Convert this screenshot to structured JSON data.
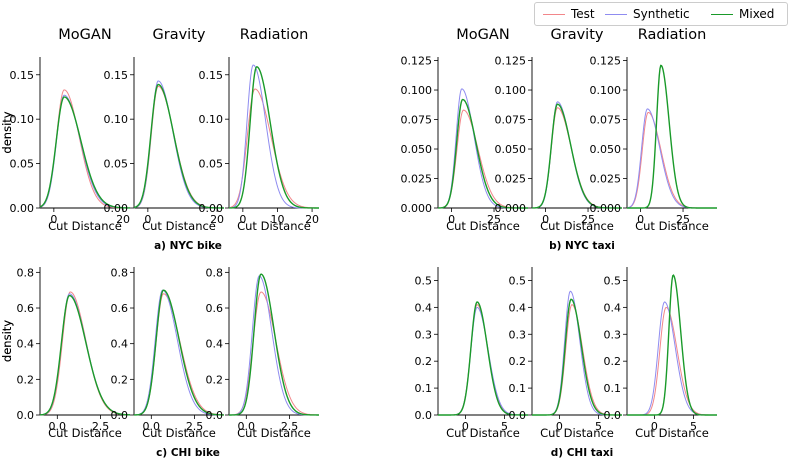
{
  "colors": {
    "Test": "#f2868a",
    "Synthetic": "#8f8cf0",
    "Mixed": "#1a9a2a"
  },
  "legend": {
    "placement": "top-right",
    "items": [
      {
        "label": "Test",
        "color": "#f2868a"
      },
      {
        "label": "Synthetic",
        "color": "#8f8cf0"
      },
      {
        "label": "Mixed",
        "color": "#1a9a2a"
      }
    ]
  },
  "groups": [
    {
      "caption": "a) NYC bike"
    },
    {
      "caption": "b) NYC taxi"
    },
    {
      "caption": "c) CHI bike"
    },
    {
      "caption": "d) CHI taxi"
    }
  ],
  "chart_data": [
    {
      "type": "line",
      "title": "MoGAN",
      "xlabel": "Cut Distance",
      "ylabel": "density",
      "xlim": [
        -4,
        22
      ],
      "ylim": [
        0,
        0.17
      ],
      "xticks": [
        "0",
        "20"
      ],
      "yticks": [
        "0.00",
        "0.05",
        "0.10",
        "0.15"
      ],
      "series": [
        {
          "name": "Test",
          "mode": 3,
          "peak": 0.133,
          "sd_left": 2.2,
          "sd_right": 4.3
        },
        {
          "name": "Synthetic",
          "mode": 3,
          "peak": 0.127,
          "sd_left": 2.2,
          "sd_right": 4.6
        },
        {
          "name": "Mixed",
          "mode": 3,
          "peak": 0.125,
          "sd_left": 2.3,
          "sd_right": 4.8
        }
      ]
    },
    {
      "type": "line",
      "title": "Gravity",
      "xlabel": "Cut Distance",
      "ylabel": "",
      "xlim": [
        -4,
        22
      ],
      "ylim": [
        0,
        0.17
      ],
      "xticks": [
        "0",
        "20"
      ],
      "yticks": [
        "0.00",
        "0.05",
        "0.10",
        "0.15"
      ],
      "series": [
        {
          "name": "Test",
          "mode": 3,
          "peak": 0.137,
          "sd_left": 2.0,
          "sd_right": 4.5
        },
        {
          "name": "Synthetic",
          "mode": 3,
          "peak": 0.143,
          "sd_left": 2.0,
          "sd_right": 4.2
        },
        {
          "name": "Mixed",
          "mode": 3,
          "peak": 0.139,
          "sd_left": 2.1,
          "sd_right": 4.4
        }
      ]
    },
    {
      "type": "line",
      "title": "Radiation",
      "xlabel": "Cut Distance",
      "ylabel": "",
      "xlim": [
        -4,
        22
      ],
      "ylim": [
        0,
        0.17
      ],
      "xticks": [
        "0",
        "10",
        "20"
      ],
      "yticks": [
        "0.00",
        "0.05",
        "0.10",
        "0.15"
      ],
      "series": [
        {
          "name": "Test",
          "mode": 3.5,
          "peak": 0.134,
          "sd_left": 2.2,
          "sd_right": 4.6
        },
        {
          "name": "Synthetic",
          "mode": 3,
          "peak": 0.161,
          "sd_left": 1.8,
          "sd_right": 3.6
        },
        {
          "name": "Mixed",
          "mode": 4,
          "peak": 0.159,
          "sd_left": 1.9,
          "sd_right": 3.9
        }
      ]
    },
    {
      "type": "line",
      "title": "MoGAN",
      "xlabel": "Cut Distance",
      "ylabel": "density",
      "xlim": [
        -8,
        45
      ],
      "ylim": [
        0,
        0.128
      ],
      "xticks": [
        "0",
        "25"
      ],
      "yticks": [
        "0.000",
        "0.025",
        "0.050",
        "0.075",
        "0.100",
        "0.125"
      ],
      "series": [
        {
          "name": "Test",
          "mode": 7,
          "peak": 0.083,
          "sd_left": 3.8,
          "sd_right": 8.5
        },
        {
          "name": "Synthetic",
          "mode": 6,
          "peak": 0.101,
          "sd_left": 3.3,
          "sd_right": 7.2
        },
        {
          "name": "Mixed",
          "mode": 6.5,
          "peak": 0.092,
          "sd_left": 3.5,
          "sd_right": 7.8
        }
      ]
    },
    {
      "type": "line",
      "title": "Gravity",
      "xlabel": "Cut Distance",
      "ylabel": "",
      "xlim": [
        -8,
        45
      ],
      "ylim": [
        0,
        0.128
      ],
      "xticks": [
        "0",
        "25"
      ],
      "yticks": [
        "0.000",
        "0.025",
        "0.050",
        "0.075",
        "0.100",
        "0.125"
      ],
      "series": [
        {
          "name": "Test",
          "mode": 7,
          "peak": 0.085,
          "sd_left": 3.6,
          "sd_right": 8.0
        },
        {
          "name": "Synthetic",
          "mode": 7,
          "peak": 0.09,
          "sd_left": 3.5,
          "sd_right": 7.6
        },
        {
          "name": "Mixed",
          "mode": 7,
          "peak": 0.088,
          "sd_left": 3.6,
          "sd_right": 7.8
        }
      ]
    },
    {
      "type": "line",
      "title": "Radiation",
      "xlabel": "Cut Distance",
      "ylabel": "",
      "xlim": [
        -8,
        45
      ],
      "ylim": [
        0,
        0.128
      ],
      "xticks": [
        "0",
        "25"
      ],
      "yticks": [
        "0.000",
        "0.025",
        "0.050",
        "0.075",
        "0.100",
        "0.125"
      ],
      "series": [
        {
          "name": "Test",
          "mode": 4.5,
          "peak": 0.081,
          "sd_left": 3.5,
          "sd_right": 7.5
        },
        {
          "name": "Synthetic",
          "mode": 4,
          "peak": 0.084,
          "sd_left": 3.4,
          "sd_right": 7.3
        },
        {
          "name": "Mixed",
          "mode": 12,
          "peak": 0.121,
          "sd_left": 2.6,
          "sd_right": 4.8
        }
      ]
    },
    {
      "type": "line",
      "title": "",
      "xlabel": "Cut Distance",
      "ylabel": "density",
      "xlim": [
        -1,
        4.2
      ],
      "ylim": [
        0,
        0.83
      ],
      "xticks": [
        "0.0",
        "2.5"
      ],
      "yticks": [
        "0.0",
        "0.2",
        "0.4",
        "0.6",
        "0.8"
      ],
      "series": [
        {
          "name": "Test",
          "mode": 0.75,
          "peak": 0.69,
          "sd_left": 0.45,
          "sd_right": 0.9
        },
        {
          "name": "Synthetic",
          "mode": 0.7,
          "peak": 0.68,
          "sd_left": 0.45,
          "sd_right": 0.95
        },
        {
          "name": "Mixed",
          "mode": 0.7,
          "peak": 0.67,
          "sd_left": 0.46,
          "sd_right": 0.95
        }
      ]
    },
    {
      "type": "line",
      "title": "",
      "xlabel": "Cut Distance",
      "ylabel": "",
      "xlim": [
        -1,
        4.2
      ],
      "ylim": [
        0,
        0.83
      ],
      "xticks": [
        "0.0",
        "2.5"
      ],
      "yticks": [
        "0.0",
        "0.2",
        "0.4",
        "0.6",
        "0.8"
      ],
      "series": [
        {
          "name": "Test",
          "mode": 0.7,
          "peak": 0.68,
          "sd_left": 0.42,
          "sd_right": 0.95
        },
        {
          "name": "Synthetic",
          "mode": 0.65,
          "peak": 0.7,
          "sd_left": 0.42,
          "sd_right": 0.85
        },
        {
          "name": "Mixed",
          "mode": 0.7,
          "peak": 0.7,
          "sd_left": 0.42,
          "sd_right": 0.9
        }
      ]
    },
    {
      "type": "line",
      "title": "",
      "xlabel": "Cut Distance",
      "ylabel": "",
      "xlim": [
        -1,
        4.2
      ],
      "ylim": [
        0,
        0.83
      ],
      "xticks": [
        "0.0",
        "2.5"
      ],
      "yticks": [
        "0.0",
        "0.2",
        "0.4",
        "0.6",
        "0.8"
      ],
      "series": [
        {
          "name": "Test",
          "mode": 0.85,
          "peak": 0.69,
          "sd_left": 0.45,
          "sd_right": 0.85
        },
        {
          "name": "Synthetic",
          "mode": 0.75,
          "peak": 0.78,
          "sd_left": 0.4,
          "sd_right": 0.72
        },
        {
          "name": "Mixed",
          "mode": 0.85,
          "peak": 0.79,
          "sd_left": 0.4,
          "sd_right": 0.75
        }
      ]
    },
    {
      "type": "line",
      "title": "",
      "xlabel": "Cut Distance",
      "ylabel": "density",
      "xlim": [
        -3.5,
        8
      ],
      "ylim": [
        0,
        0.55
      ],
      "xticks": [
        "0",
        "5"
      ],
      "yticks": [
        "0.0",
        "0.1",
        "0.2",
        "0.3",
        "0.4",
        "0.5"
      ],
      "series": [
        {
          "name": "Test",
          "mode": 1.5,
          "peak": 0.41,
          "sd_left": 0.8,
          "sd_right": 1.35
        },
        {
          "name": "Synthetic",
          "mode": 1.5,
          "peak": 0.4,
          "sd_left": 0.8,
          "sd_right": 1.4
        },
        {
          "name": "Mixed",
          "mode": 1.5,
          "peak": 0.42,
          "sd_left": 0.78,
          "sd_right": 1.3
        }
      ]
    },
    {
      "type": "line",
      "title": "",
      "xlabel": "Cut Distance",
      "ylabel": "",
      "xlim": [
        -3.5,
        8
      ],
      "ylim": [
        0,
        0.55
      ],
      "xticks": [
        "0",
        "5"
      ],
      "yticks": [
        "0.0",
        "0.1",
        "0.2",
        "0.3",
        "0.4",
        "0.5"
      ],
      "series": [
        {
          "name": "Test",
          "mode": 1.6,
          "peak": 0.41,
          "sd_left": 0.78,
          "sd_right": 1.35
        },
        {
          "name": "Synthetic",
          "mode": 1.4,
          "peak": 0.46,
          "sd_left": 0.72,
          "sd_right": 1.2
        },
        {
          "name": "Mixed",
          "mode": 1.5,
          "peak": 0.43,
          "sd_left": 0.75,
          "sd_right": 1.3
        }
      ]
    },
    {
      "type": "line",
      "title": "",
      "xlabel": "Cut Distance",
      "ylabel": "",
      "xlim": [
        -3.5,
        8
      ],
      "ylim": [
        0,
        0.55
      ],
      "xticks": [
        "0",
        "5"
      ],
      "yticks": [
        "0.0",
        "0.1",
        "0.2",
        "0.3",
        "0.4",
        "0.5"
      ],
      "series": [
        {
          "name": "Test",
          "mode": 1.5,
          "peak": 0.4,
          "sd_left": 0.8,
          "sd_right": 1.4
        },
        {
          "name": "Synthetic",
          "mode": 1.3,
          "peak": 0.42,
          "sd_left": 0.8,
          "sd_right": 1.35
        },
        {
          "name": "Mixed",
          "mode": 2.4,
          "peak": 0.52,
          "sd_left": 0.55,
          "sd_right": 0.95
        }
      ]
    }
  ]
}
